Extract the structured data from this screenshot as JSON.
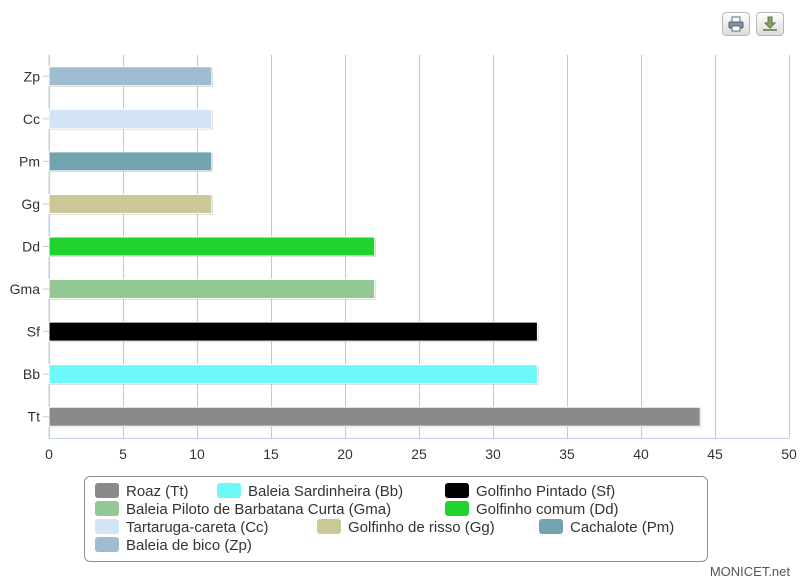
{
  "chart_data": {
    "type": "bar",
    "orientation": "horizontal",
    "categories": [
      "Zp",
      "Cc",
      "Pm",
      "Gg",
      "Dd",
      "Gma",
      "Sf",
      "Bb",
      "Tt"
    ],
    "values": [
      11,
      11,
      11,
      11,
      22,
      22,
      33,
      33,
      44
    ],
    "colors": [
      "#9fbcd0",
      "#d2e4f6",
      "#72a4b0",
      "#cbc797",
      "#22d22d",
      "#93c793",
      "#000000",
      "#6ef8f8",
      "#8a8a8a"
    ],
    "xlim": [
      0,
      50
    ],
    "xticks": [
      "0",
      "5",
      "10",
      "15",
      "20",
      "25",
      "30",
      "35",
      "40",
      "45",
      "50"
    ],
    "grid": true,
    "legend_position": "bottom",
    "legend": [
      {
        "label": "Roaz (Tt)",
        "color": "#8a8a8a"
      },
      {
        "label": "Baleia Sardinheira (Bb)",
        "color": "#6ef8f8"
      },
      {
        "label": "Golfinho Pintado (Sf)",
        "color": "#000000"
      },
      {
        "label": "Baleia Piloto de Barbatana Curta (Gma)",
        "color": "#93c793"
      },
      {
        "label": "Golfinho comum (Dd)",
        "color": "#22d22d"
      },
      {
        "label": "Tartaruga-careta (Cc)",
        "color": "#d2e4f6"
      },
      {
        "label": "Golfinho de risso (Gg)",
        "color": "#cbc797"
      },
      {
        "label": "Cachalote (Pm)",
        "color": "#72a4b0"
      },
      {
        "label": "Baleia de bico (Zp)",
        "color": "#9fbcd0"
      }
    ]
  },
  "toolbar": {
    "print_icon": "printer-icon",
    "download_icon": "download-icon"
  },
  "credit": "MONICET.net"
}
